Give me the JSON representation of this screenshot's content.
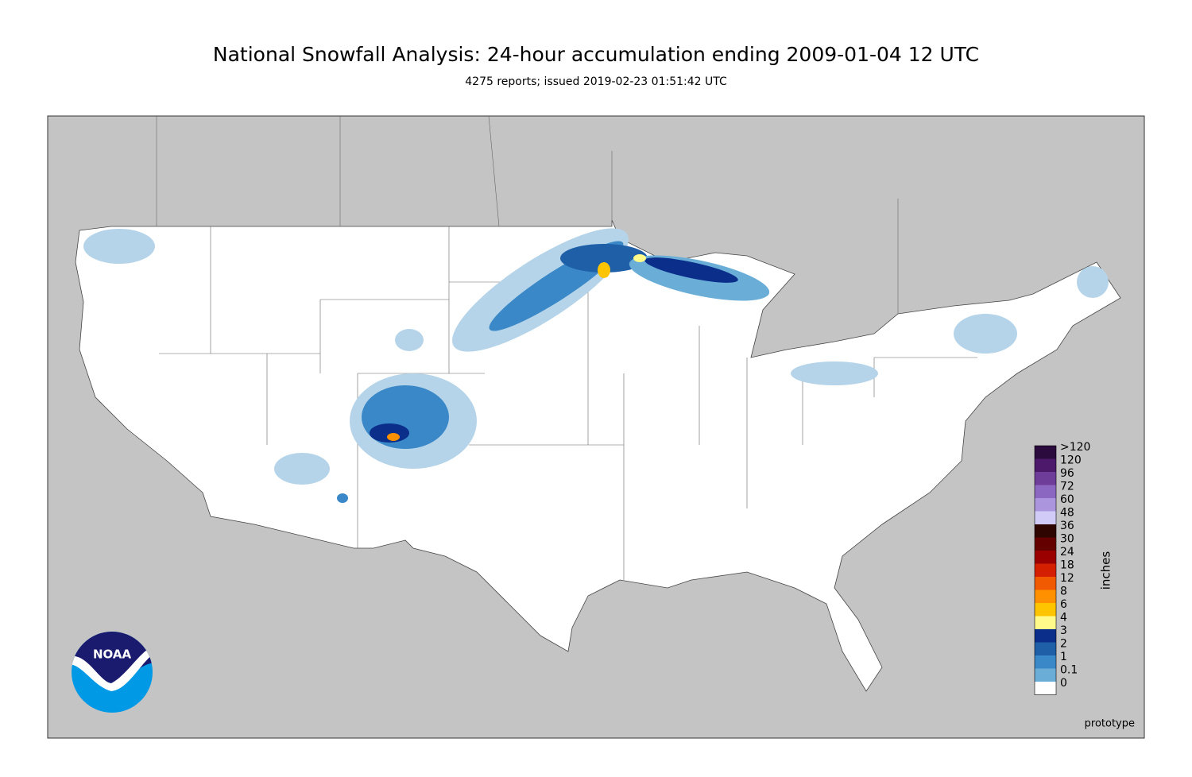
{
  "header": {
    "title": "National Snowfall Analysis: 24-hour accumulation ending 2009-01-04 12 UTC",
    "subtitle": "4275 reports; issued 2019-02-23 01:51:42 UTC"
  },
  "legend": {
    "unit": "inches",
    "items": [
      {
        "label": ">120",
        "color": "#2b0a3d"
      },
      {
        "label": "120",
        "color": "#4d1a6b"
      },
      {
        "label": "96",
        "color": "#6e3d99"
      },
      {
        "label": "72",
        "color": "#8b67c2"
      },
      {
        "label": "60",
        "color": "#ab95dc"
      },
      {
        "label": "48",
        "color": "#d0ccf7"
      },
      {
        "label": "36",
        "color": "#2e0500"
      },
      {
        "label": "30",
        "color": "#650000"
      },
      {
        "label": "24",
        "color": "#9b0000"
      },
      {
        "label": "18",
        "color": "#d42000"
      },
      {
        "label": "12",
        "color": "#f15a00"
      },
      {
        "label": "8",
        "color": "#ff9000"
      },
      {
        "label": "6",
        "color": "#ffc400"
      },
      {
        "label": "4",
        "color": "#fffa8a"
      },
      {
        "label": "3",
        "color": "#0a2e8a"
      },
      {
        "label": "2",
        "color": "#1e5fa8"
      },
      {
        "label": "1",
        "color": "#3a88c7"
      },
      {
        "label": "0.1",
        "color": "#6aaed8"
      },
      {
        "label": "0",
        "color": "#ffffff"
      }
    ]
  },
  "logo": {
    "text": "NOAA"
  },
  "footer": {
    "note": "prototype"
  }
}
